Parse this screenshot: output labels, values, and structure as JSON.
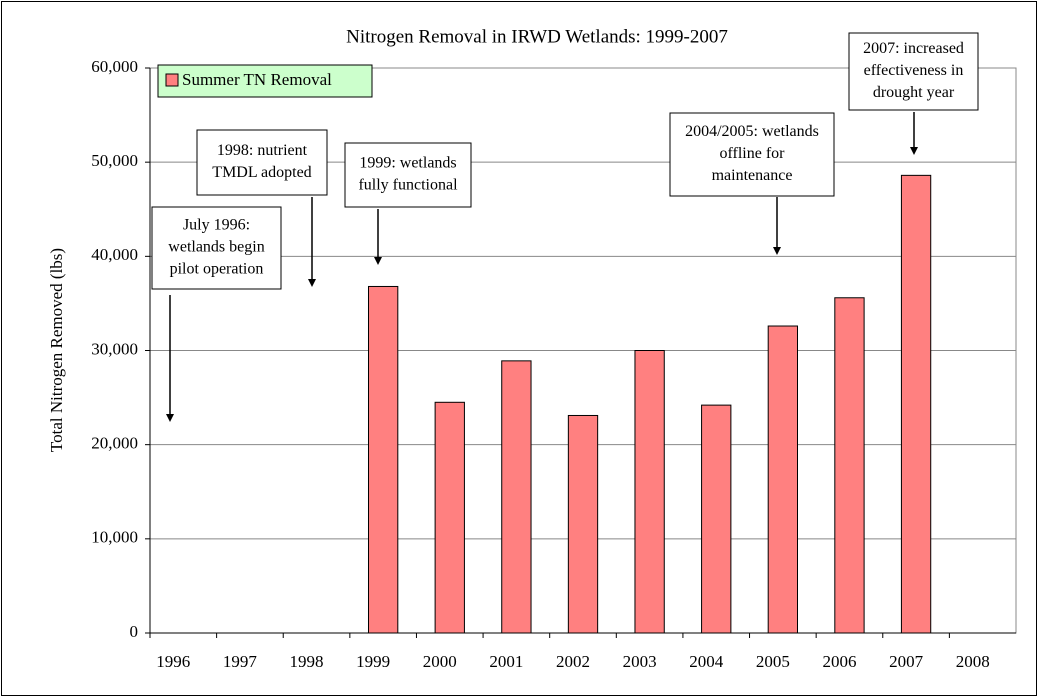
{
  "chart_data": {
    "type": "bar",
    "title": "Nitrogen Removal in IRWD Wetlands: 1999-2007",
    "y_label": "Total Nitrogen Removed (lbs)",
    "categories": [
      "1996",
      "1997",
      "1998",
      "1999",
      "2000",
      "2001",
      "2002",
      "2003",
      "2004",
      "2005",
      "2006",
      "2007",
      "2008"
    ],
    "series": [
      {
        "name": "Summer TN Removal",
        "color": "#ff8080",
        "values": [
          null,
          null,
          null,
          36800,
          24500,
          28900,
          23100,
          30000,
          24200,
          32600,
          35600,
          48600,
          null
        ]
      }
    ],
    "ylim": [
      0,
      60000
    ],
    "yticks": [
      0,
      {
        "value": 10000,
        "label": "10,000"
      },
      {
        "value": 20000,
        "label": "20,000"
      },
      {
        "value": 30000,
        "label": "30,000"
      },
      {
        "value": 40000,
        "label": "40,000"
      },
      {
        "value": 50000,
        "label": "50,000"
      },
      {
        "value": 60000,
        "label": "60,000"
      }
    ],
    "grid": true,
    "legend": "top-left",
    "annotations": [
      {
        "lines": [
          "July 1996:",
          "wetlands begin",
          "pilot operation"
        ]
      },
      {
        "lines": [
          "1998: nutrient",
          "TMDL adopted"
        ]
      },
      {
        "lines": [
          "1999: wetlands",
          "fully functional"
        ]
      },
      {
        "lines": [
          "2004/2005: wetlands",
          "offline for",
          "maintenance"
        ]
      },
      {
        "lines": [
          "2007: increased",
          "effectiveness in",
          "drought year"
        ]
      }
    ]
  }
}
